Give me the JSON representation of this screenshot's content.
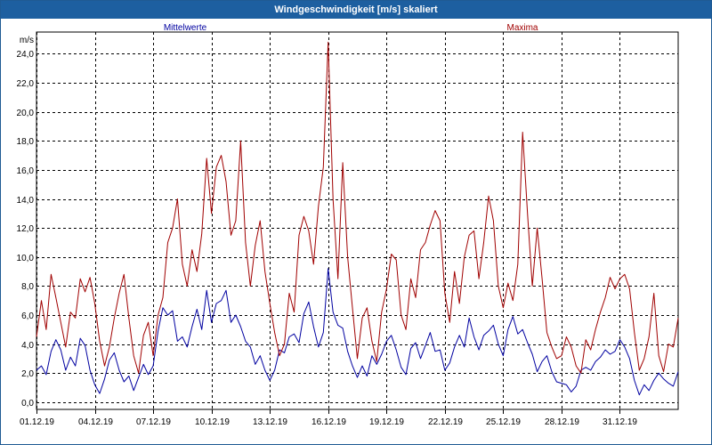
{
  "window": {
    "title": "Windgeschwindigkeit [m/s] skaliert"
  },
  "chart_data": {
    "type": "line",
    "title": "Windgeschwindigkeit [m/s] skaliert",
    "ylabel": "m/s",
    "xlabel": "",
    "ylim": [
      -0.5,
      25.5
    ],
    "xlim": [
      0,
      33
    ],
    "grid": true,
    "yticks": [
      0,
      2,
      4,
      6,
      8,
      10,
      12,
      14,
      16,
      18,
      20,
      22,
      24
    ],
    "ytick_labels": [
      "0,0",
      "2,0",
      "4,0",
      "6,0",
      "8,0",
      "10,0",
      "12,0",
      "14,0",
      "16,0",
      "18,0",
      "20,0",
      "22,0",
      "24,0"
    ],
    "xticks": [
      0,
      3,
      6,
      9,
      12,
      15,
      18,
      21,
      24,
      27,
      30
    ],
    "xtick_labels": [
      "01.12.19",
      "04.12.19",
      "07.12.19",
      "10.12.19",
      "13.12.19",
      "16.12.19",
      "19.12.19",
      "22.12.19",
      "25.12.19",
      "28.12.19",
      "31.12.19"
    ],
    "legend_placement": "top",
    "series": [
      {
        "name": "Mittelwerte",
        "color": "#0000a0",
        "x": [
          0.0,
          0.25,
          0.5,
          0.75,
          1.0,
          1.25,
          1.5,
          1.75,
          2.0,
          2.25,
          2.5,
          2.75,
          3.0,
          3.25,
          3.5,
          3.75,
          4.0,
          4.25,
          4.5,
          4.75,
          5.0,
          5.25,
          5.5,
          5.75,
          6.0,
          6.25,
          6.5,
          6.75,
          7.0,
          7.25,
          7.5,
          7.75,
          8.0,
          8.25,
          8.5,
          8.75,
          9.0,
          9.25,
          9.5,
          9.75,
          10.0,
          10.25,
          10.5,
          10.75,
          11.0,
          11.25,
          11.5,
          11.75,
          12.0,
          12.25,
          12.5,
          12.75,
          13.0,
          13.25,
          13.5,
          13.75,
          14.0,
          14.25,
          14.5,
          14.75,
          15.0,
          15.25,
          15.5,
          15.75,
          16.0,
          16.25,
          16.5,
          16.75,
          17.0,
          17.25,
          17.5,
          17.75,
          18.0,
          18.25,
          18.5,
          18.75,
          19.0,
          19.25,
          19.5,
          19.75,
          20.0,
          20.25,
          20.5,
          20.75,
          21.0,
          21.25,
          21.5,
          21.75,
          22.0,
          22.25,
          22.5,
          22.75,
          23.0,
          23.25,
          23.5,
          23.75,
          24.0,
          24.25,
          24.5,
          24.75,
          25.0,
          25.25,
          25.5,
          25.75,
          26.0,
          26.25,
          26.5,
          26.75,
          27.0,
          27.25,
          27.5,
          27.75,
          28.0,
          28.25,
          28.5,
          28.75,
          29.0,
          29.25,
          29.5,
          29.75,
          30.0,
          30.25,
          30.5,
          30.75,
          31.0,
          31.25,
          31.5,
          31.75,
          32.0,
          32.25,
          32.5,
          32.75,
          33.0
        ],
        "values": [
          2.2,
          2.5,
          1.9,
          3.5,
          4.3,
          3.6,
          2.2,
          3.1,
          2.5,
          4.4,
          3.9,
          2.2,
          1.2,
          0.6,
          1.6,
          2.9,
          3.4,
          2.2,
          1.4,
          1.8,
          0.8,
          1.7,
          2.6,
          1.9,
          2.5,
          4.9,
          6.5,
          6.0,
          6.3,
          4.2,
          4.5,
          3.8,
          5.2,
          6.4,
          5.0,
          7.7,
          5.5,
          6.8,
          7.0,
          7.7,
          5.5,
          6.0,
          5.2,
          4.2,
          3.8,
          2.6,
          3.2,
          2.2,
          1.5,
          2.2,
          3.6,
          3.4,
          4.5,
          4.7,
          4.1,
          6.1,
          6.9,
          5.2,
          3.8,
          4.8,
          9.2,
          6.2,
          5.3,
          5.1,
          3.5,
          2.5,
          1.7,
          2.5,
          1.8,
          3.2,
          2.6,
          3.3,
          4.2,
          4.6,
          3.6,
          2.4,
          1.9,
          3.7,
          4.1,
          3.0,
          3.9,
          4.8,
          3.5,
          3.6,
          2.2,
          2.7,
          3.8,
          4.6,
          3.8,
          5.8,
          4.5,
          3.6,
          4.6,
          4.9,
          5.3,
          4.0,
          3.2,
          5.0,
          5.9,
          4.7,
          5.0,
          4.1,
          3.3,
          2.1,
          2.8,
          3.2,
          2.1,
          1.4,
          1.3,
          1.2,
          0.7,
          1.1,
          2.2,
          2.4,
          2.2,
          2.8,
          3.1,
          3.6,
          3.3,
          3.5,
          4.3,
          3.8,
          3.0,
          1.5,
          0.5,
          1.2,
          0.8,
          1.5,
          2.0,
          1.6,
          1.3,
          1.1,
          2.1
        ]
      },
      {
        "name": "Maxima",
        "color": "#a00000",
        "x": [
          0.0,
          0.25,
          0.5,
          0.75,
          1.0,
          1.25,
          1.5,
          1.75,
          2.0,
          2.25,
          2.5,
          2.75,
          3.0,
          3.25,
          3.5,
          3.75,
          4.0,
          4.25,
          4.5,
          4.75,
          5.0,
          5.25,
          5.5,
          5.75,
          6.0,
          6.25,
          6.5,
          6.75,
          7.0,
          7.25,
          7.5,
          7.75,
          8.0,
          8.25,
          8.5,
          8.75,
          9.0,
          9.25,
          9.5,
          9.75,
          10.0,
          10.25,
          10.5,
          10.75,
          11.0,
          11.25,
          11.5,
          11.75,
          12.0,
          12.25,
          12.5,
          12.75,
          13.0,
          13.25,
          13.5,
          13.75,
          14.0,
          14.25,
          14.5,
          14.75,
          15.0,
          15.25,
          15.5,
          15.75,
          16.0,
          16.25,
          16.5,
          16.75,
          17.0,
          17.25,
          17.5,
          17.75,
          18.0,
          18.25,
          18.5,
          18.75,
          19.0,
          19.25,
          19.5,
          19.75,
          20.0,
          20.25,
          20.5,
          20.75,
          21.0,
          21.25,
          21.5,
          21.75,
          22.0,
          22.25,
          22.5,
          22.75,
          23.0,
          23.25,
          23.5,
          23.75,
          24.0,
          24.25,
          24.5,
          24.75,
          25.0,
          25.25,
          25.5,
          25.75,
          26.0,
          26.25,
          26.5,
          26.75,
          27.0,
          27.25,
          27.5,
          27.75,
          28.0,
          28.25,
          28.5,
          28.75,
          29.0,
          29.25,
          29.5,
          29.75,
          30.0,
          30.25,
          30.5,
          30.75,
          31.0,
          31.25,
          31.5,
          31.75,
          32.0,
          32.25,
          32.5,
          32.75,
          33.0
        ],
        "values": [
          4.5,
          7.0,
          5.0,
          8.8,
          7.2,
          5.5,
          3.8,
          6.2,
          5.8,
          8.5,
          7.6,
          8.6,
          6.8,
          4.2,
          2.5,
          3.8,
          5.8,
          7.5,
          8.8,
          5.8,
          3.2,
          2.0,
          4.6,
          5.5,
          3.2,
          6.0,
          7.2,
          11.0,
          12.0,
          14.0,
          9.5,
          8.0,
          10.5,
          9.0,
          11.6,
          16.8,
          13.0,
          16.2,
          17.0,
          15.2,
          11.5,
          12.5,
          18.0,
          11.0,
          8.0,
          10.8,
          12.5,
          9.0,
          6.8,
          4.8,
          3.2,
          4.0,
          7.5,
          6.2,
          11.5,
          12.8,
          11.8,
          9.5,
          13.5,
          16.2,
          24.8,
          14.0,
          8.5,
          16.5,
          10.0,
          6.5,
          3.0,
          5.8,
          6.5,
          4.2,
          2.8,
          6.2,
          7.8,
          10.2,
          9.8,
          6.0,
          5.0,
          8.5,
          7.2,
          10.5,
          11.0,
          12.2,
          13.2,
          12.5,
          7.5,
          5.5,
          9.0,
          6.8,
          10.0,
          11.5,
          11.8,
          8.5,
          11.0,
          14.2,
          12.5,
          8.0,
          6.5,
          8.2,
          7.0,
          9.5,
          18.6,
          13.0,
          8.0,
          12.0,
          8.5,
          4.8,
          3.8,
          3.0,
          3.2,
          4.5,
          3.8,
          2.5,
          2.0,
          4.3,
          3.6,
          5.0,
          6.2,
          7.2,
          8.6,
          7.8,
          8.5,
          8.8,
          7.8,
          4.8,
          2.2,
          3.0,
          4.5,
          7.5,
          3.2,
          2.1,
          4.0,
          3.8,
          5.8
        ]
      }
    ]
  }
}
